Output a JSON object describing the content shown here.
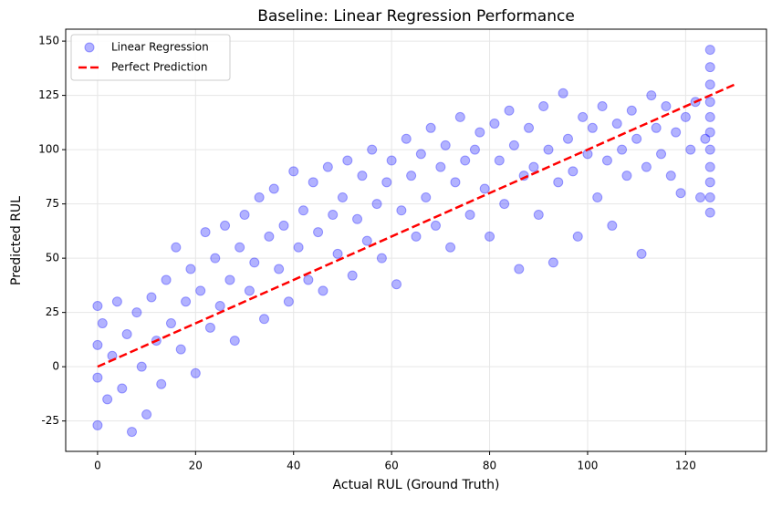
{
  "chart_data": {
    "type": "scatter",
    "title": "Baseline: Linear Regression Performance",
    "x_label": "Actual RUL (Ground Truth)",
    "y_label": "Predicted RUL",
    "xlim": [
      -6.5,
      136.5
    ],
    "ylim": [
      -39,
      155.5
    ],
    "xticks": [
      0,
      20,
      40,
      60,
      80,
      100,
      120
    ],
    "yticks": [
      -25,
      0,
      25,
      50,
      75,
      100,
      125,
      150
    ],
    "grid": true,
    "legend": "upper-left",
    "series": [
      {
        "name": "Linear Regression",
        "color": "#0000ff",
        "kind": "scatter",
        "x": [
          0,
          0,
          0,
          0,
          1,
          2,
          3,
          4,
          5,
          6,
          7,
          8,
          9,
          10,
          11,
          12,
          13,
          14,
          15,
          16,
          17,
          18,
          19,
          20,
          21,
          22,
          23,
          24,
          25,
          26,
          27,
          28,
          29,
          30,
          31,
          32,
          33,
          34,
          35,
          36,
          37,
          38,
          39,
          40,
          41,
          42,
          43,
          44,
          45,
          46,
          47,
          48,
          49,
          50,
          51,
          52,
          53,
          54,
          55,
          56,
          57,
          58,
          59,
          60,
          61,
          62,
          63,
          64,
          65,
          66,
          67,
          68,
          69,
          70,
          71,
          72,
          73,
          74,
          75,
          76,
          77,
          78,
          79,
          80,
          81,
          82,
          83,
          84,
          85,
          86,
          87,
          88,
          89,
          90,
          91,
          92,
          93,
          94,
          95,
          96,
          97,
          98,
          99,
          100,
          101,
          102,
          103,
          104,
          105,
          106,
          107,
          108,
          109,
          110,
          111,
          112,
          113,
          114,
          115,
          116,
          117,
          118,
          119,
          120,
          121,
          122,
          123,
          124,
          125,
          125,
          125,
          125,
          125,
          125,
          125,
          125,
          125,
          125,
          125
        ],
        "values": [
          -5,
          28,
          -27,
          10,
          20,
          -15,
          5,
          30,
          -10,
          15,
          -30,
          25,
          0,
          -22,
          32,
          12,
          -8,
          40,
          20,
          55,
          8,
          30,
          45,
          -3,
          35,
          62,
          18,
          50,
          28,
          65,
          40,
          12,
          55,
          70,
          35,
          48,
          78,
          22,
          60,
          82,
          45,
          65,
          30,
          90,
          55,
          72,
          40,
          85,
          62,
          35,
          92,
          70,
          52,
          78,
          95,
          42,
          68,
          88,
          58,
          100,
          75,
          50,
          85,
          95,
          38,
          72,
          105,
          88,
          60,
          98,
          78,
          110,
          65,
          92,
          102,
          55,
          85,
          115,
          95,
          70,
          100,
          108,
          82,
          60,
          112,
          95,
          75,
          118,
          102,
          45,
          88,
          110,
          92,
          70,
          120,
          100,
          48,
          85,
          126,
          105,
          90,
          60,
          115,
          98,
          110,
          78,
          120,
          95,
          65,
          112,
          100,
          88,
          118,
          105,
          52,
          92,
          125,
          110,
          98,
          120,
          88,
          108,
          80,
          115,
          100,
          122,
          78,
          105,
          146,
          138,
          130,
          122,
          115,
          108,
          100,
          92,
          85,
          78,
          71
        ]
      },
      {
        "name": "Perfect Prediction",
        "color": "#ff0000",
        "kind": "line",
        "style": "dashed",
        "x": [
          0,
          130
        ],
        "values": [
          0,
          130
        ]
      }
    ]
  }
}
